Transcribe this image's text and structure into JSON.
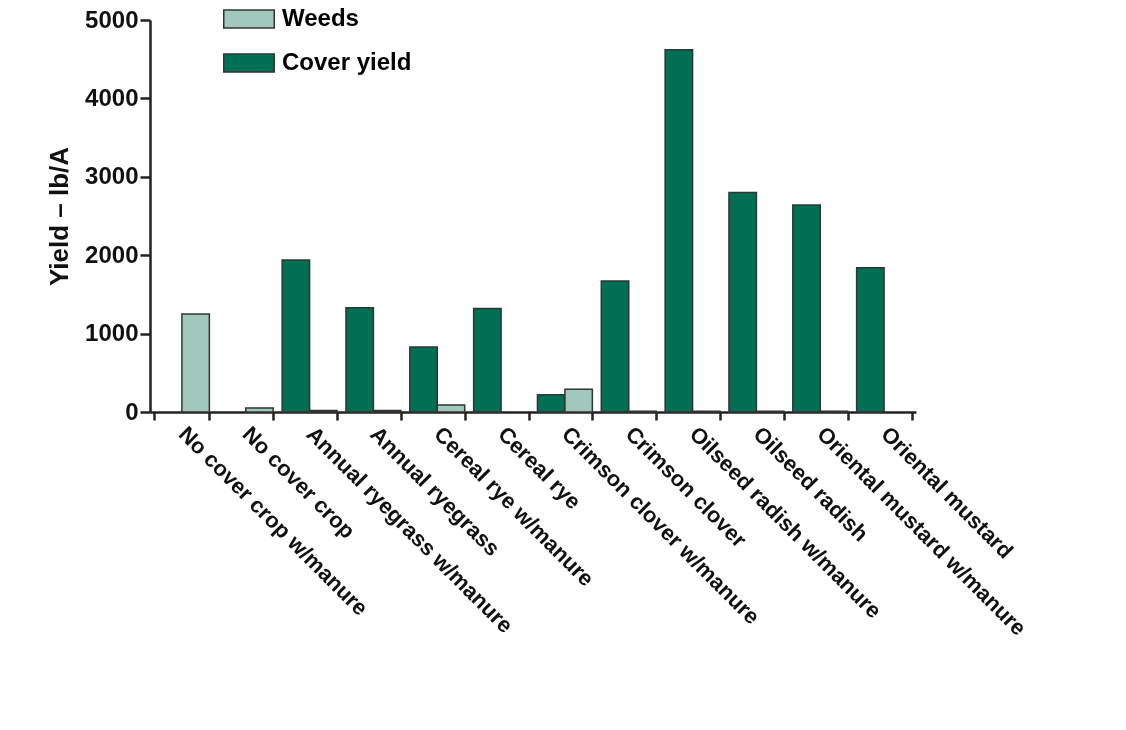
{
  "chart_data": {
    "type": "bar",
    "ylabel": "Yield – lb/A",
    "categories": [
      "No cover crop w/manure",
      "No cover crop",
      "Annual ryegrass w/manure",
      "Annual ryegrass",
      "Cereal rye w/manure",
      "Cereal rye",
      "Crimson clover w/manure",
      "Crimson clover",
      "Oilseed radish w/manure",
      "Oilseed radish",
      "Oriental mustard w/manure",
      "Oriental mustard"
    ],
    "series": [
      {
        "name": "Cover yield",
        "color": "#007054",
        "values": [
          0,
          0,
          1940,
          1330,
          830,
          1320,
          220,
          1670,
          4620,
          2800,
          2640,
          1840
        ]
      },
      {
        "name": "Weeds",
        "color": "#a0c8bc",
        "values": [
          1250,
          50,
          20,
          20,
          90,
          0,
          290,
          10,
          10,
          10,
          10,
          0
        ]
      }
    ],
    "ylim": [
      0,
      5000
    ],
    "yticks": [
      0,
      1000,
      2000,
      3000,
      4000,
      5000
    ],
    "grid": false,
    "legend": "top left"
  }
}
